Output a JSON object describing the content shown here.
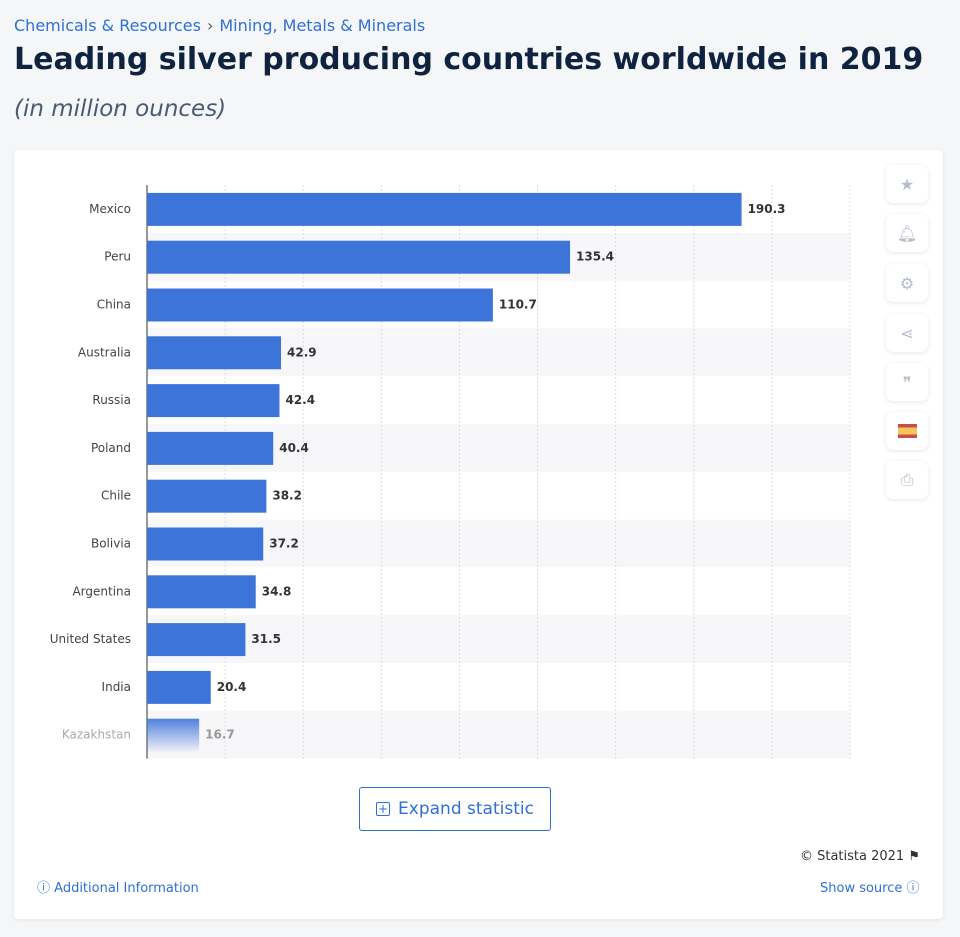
{
  "breadcrumb": [
    "Chemicals & Resources",
    "Mining, Metals & Minerals"
  ],
  "breadcrumb_sep": "›",
  "title": "Leading silver producing countries worldwide in 2019",
  "subtitle": "(in million ounces)",
  "chart_data": {
    "type": "bar",
    "orientation": "horizontal",
    "categories": [
      "Mexico",
      "Peru",
      "China",
      "Australia",
      "Russia",
      "Poland",
      "Chile",
      "Bolivia",
      "Argentina",
      "United States",
      "India",
      "Kazakhstan"
    ],
    "values": [
      190.3,
      135.4,
      110.7,
      42.9,
      42.4,
      40.4,
      38.2,
      37.2,
      34.8,
      31.5,
      20.4,
      16.7
    ],
    "xlim": [
      0,
      225
    ],
    "grid": true,
    "bar_color": "#3d74d9",
    "title": "",
    "xlabel": "",
    "ylabel": ""
  },
  "side_tools": [
    "star-icon",
    "bell-icon",
    "gear-icon",
    "share-icon",
    "quote-icon",
    "spain-flag-icon",
    "print-icon"
  ],
  "expand_label": "Expand statistic",
  "copyright": "© Statista 2021",
  "additional_info": "Additional Information",
  "show_source": "Show source"
}
